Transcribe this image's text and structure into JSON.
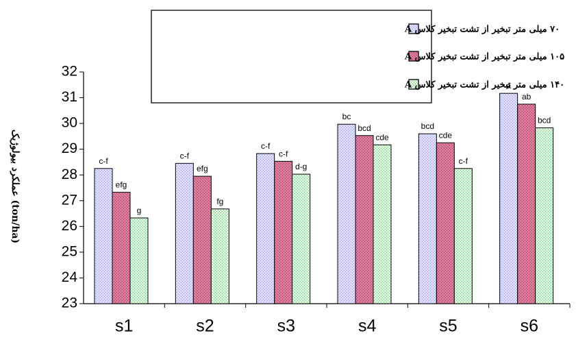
{
  "chart_data": {
    "type": "bar",
    "title": "",
    "xlabel": "",
    "ylabel": "عملکرد بیولوژیک (ton/ha)",
    "ylim": [
      23,
      32
    ],
    "yticks": [
      23,
      24,
      25,
      26,
      27,
      28,
      29,
      30,
      31,
      32
    ],
    "grid": false,
    "legend_position": "top-center",
    "categories": [
      "s1",
      "s2",
      "s3",
      "s4",
      "s5",
      "s6"
    ],
    "series": [
      {
        "name": "۷۰ میلی متر تبخیر از تشت تبخیر کلاس A",
        "color": "#ccccff",
        "values": [
          28.25,
          28.45,
          28.83,
          29.97,
          29.6,
          31.17
        ],
        "labels": [
          "c-f",
          "c-f",
          "c-f",
          "bc",
          "bcd",
          "a"
        ]
      },
      {
        "name": "۱۰۵ میلی متر تبخیر از تشت تبخیر کلاس A",
        "color": "#cc6688",
        "values": [
          27.33,
          27.95,
          28.53,
          29.53,
          29.25,
          30.75
        ],
        "labels": [
          "efg",
          "efg",
          "c-f",
          "bcd",
          "cde",
          "ab"
        ]
      },
      {
        "name": "۱۴۰ میلی متر تبخیر از تشت تبخیر کلاس A",
        "color": "#ccf0cc",
        "values": [
          26.33,
          26.68,
          28.03,
          29.17,
          28.25,
          29.83
        ],
        "labels": [
          "g",
          "fg",
          "d-g",
          "cde",
          "c-f",
          "bcd"
        ]
      }
    ]
  }
}
